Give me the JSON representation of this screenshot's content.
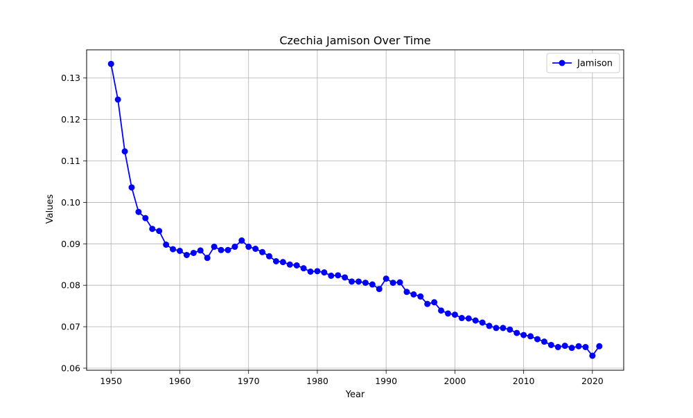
{
  "chart_data": {
    "type": "line",
    "title": "Czechia Jamison Over Time",
    "xlabel": "Year",
    "ylabel": "Values",
    "xlim": [
      1946.45,
      2024.55
    ],
    "ylim": [
      0.0595,
      0.1368
    ],
    "xticks": [
      1950,
      1960,
      1970,
      1980,
      1990,
      2000,
      2010,
      2020
    ],
    "xtick_labels": [
      "1950",
      "1960",
      "1970",
      "1980",
      "1990",
      "2000",
      "2010",
      "2020"
    ],
    "yticks": [
      0.06,
      0.07,
      0.08,
      0.09,
      0.1,
      0.11,
      0.12,
      0.13
    ],
    "ytick_labels": [
      "0.06",
      "0.07",
      "0.08",
      "0.09",
      "0.10",
      "0.11",
      "0.12",
      "0.13"
    ],
    "grid": true,
    "legend_position": "top-right",
    "series": [
      {
        "name": "Jamison",
        "color": "#0000ff",
        "marker": "circle",
        "x": [
          1950,
          1951,
          1952,
          1953,
          1954,
          1955,
          1956,
          1957,
          1958,
          1959,
          1960,
          1961,
          1962,
          1963,
          1964,
          1965,
          1966,
          1967,
          1968,
          1969,
          1970,
          1971,
          1972,
          1973,
          1974,
          1975,
          1976,
          1977,
          1978,
          1979,
          1980,
          1981,
          1982,
          1983,
          1984,
          1985,
          1986,
          1987,
          1988,
          1989,
          1990,
          1991,
          1992,
          1993,
          1994,
          1995,
          1996,
          1997,
          1998,
          1999,
          2000,
          2001,
          2002,
          2003,
          2004,
          2005,
          2006,
          2007,
          2008,
          2009,
          2010,
          2011,
          2012,
          2013,
          2014,
          2015,
          2016,
          2017,
          2018,
          2019,
          2020,
          2021
        ],
        "y": [
          0.1334,
          0.1248,
          0.1123,
          0.1036,
          0.0977,
          0.0962,
          0.0936,
          0.0931,
          0.0898,
          0.0887,
          0.0883,
          0.0873,
          0.0878,
          0.0884,
          0.0866,
          0.0893,
          0.0885,
          0.0885,
          0.0893,
          0.0908,
          0.0893,
          0.0888,
          0.088,
          0.087,
          0.0858,
          0.0856,
          0.085,
          0.0848,
          0.0841,
          0.0833,
          0.0834,
          0.0831,
          0.0823,
          0.0824,
          0.0819,
          0.0809,
          0.0809,
          0.0806,
          0.0802,
          0.0791,
          0.0816,
          0.0806,
          0.0807,
          0.0784,
          0.0778,
          0.0773,
          0.0755,
          0.0759,
          0.0739,
          0.0732,
          0.0729,
          0.0721,
          0.072,
          0.0715,
          0.071,
          0.0702,
          0.0697,
          0.0697,
          0.0693,
          0.0685,
          0.068,
          0.0677,
          0.067,
          0.0664,
          0.0656,
          0.0651,
          0.0654,
          0.0649,
          0.0653,
          0.0651,
          0.063,
          0.0653
        ]
      }
    ]
  }
}
